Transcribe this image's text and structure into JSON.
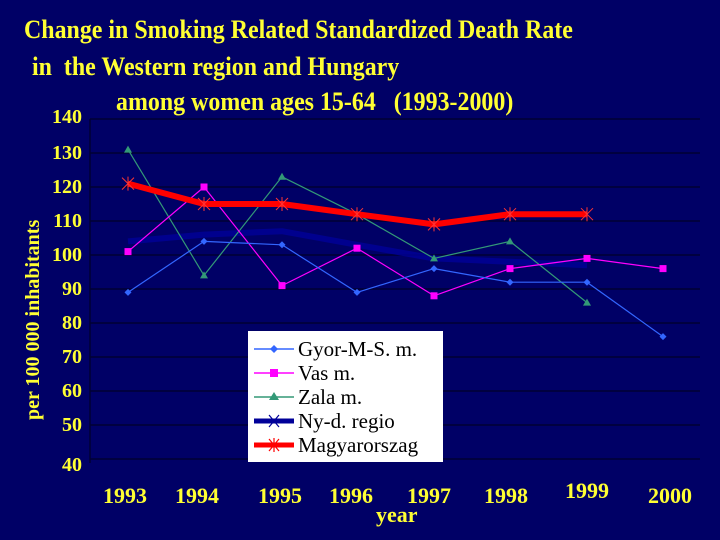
{
  "title": {
    "line1": "Change in Smoking Related Standardized Death Rate",
    "line2": "in  the Western region and Hungary",
    "line3": "among women ages 15-64   (1993-2000)"
  },
  "colors": {
    "background": "#000066",
    "text": "#FFFF33",
    "gridline": "#000033",
    "gyor": "#3366FF",
    "vas": "#FF00FF",
    "zala": "#339977",
    "nyd": "#000099",
    "magyar": "#FF0000"
  },
  "chart_data": {
    "type": "line",
    "title": "Change in Smoking Related Standardized Death Rate in the Western region and Hungary among women ages 15-64 (1993-2000)",
    "xlabel": "year",
    "ylabel": "per 100 000 inhabitants",
    "ylim": [
      40,
      140
    ],
    "yticks": [
      140,
      130,
      120,
      110,
      100,
      90,
      80,
      70,
      60,
      50,
      40
    ],
    "grid": true,
    "legend_position": "center-inside",
    "categories": [
      "1993",
      "1994",
      "1995",
      "1996",
      "1997",
      "1998",
      "1999",
      "2000"
    ],
    "series": [
      {
        "name": "Gyor-M-S. m.",
        "marker": "diamond",
        "values": [
          89,
          104,
          103,
          89,
          96,
          92,
          92,
          76
        ]
      },
      {
        "name": "Vas m.",
        "marker": "square",
        "values": [
          101,
          120,
          91,
          102,
          88,
          96,
          99,
          96
        ]
      },
      {
        "name": "Zala m.",
        "marker": "triangle",
        "values": [
          131,
          94,
          123,
          112,
          99,
          104,
          86,
          null
        ]
      },
      {
        "name": "Ny-d. regio",
        "marker": "x",
        "values": [
          104,
          106,
          107,
          103,
          99,
          98,
          97,
          null
        ]
      },
      {
        "name": "Magyarorszag",
        "marker": "asterisk",
        "values": [
          121,
          115,
          115,
          112,
          109,
          112,
          112,
          null
        ]
      }
    ]
  }
}
